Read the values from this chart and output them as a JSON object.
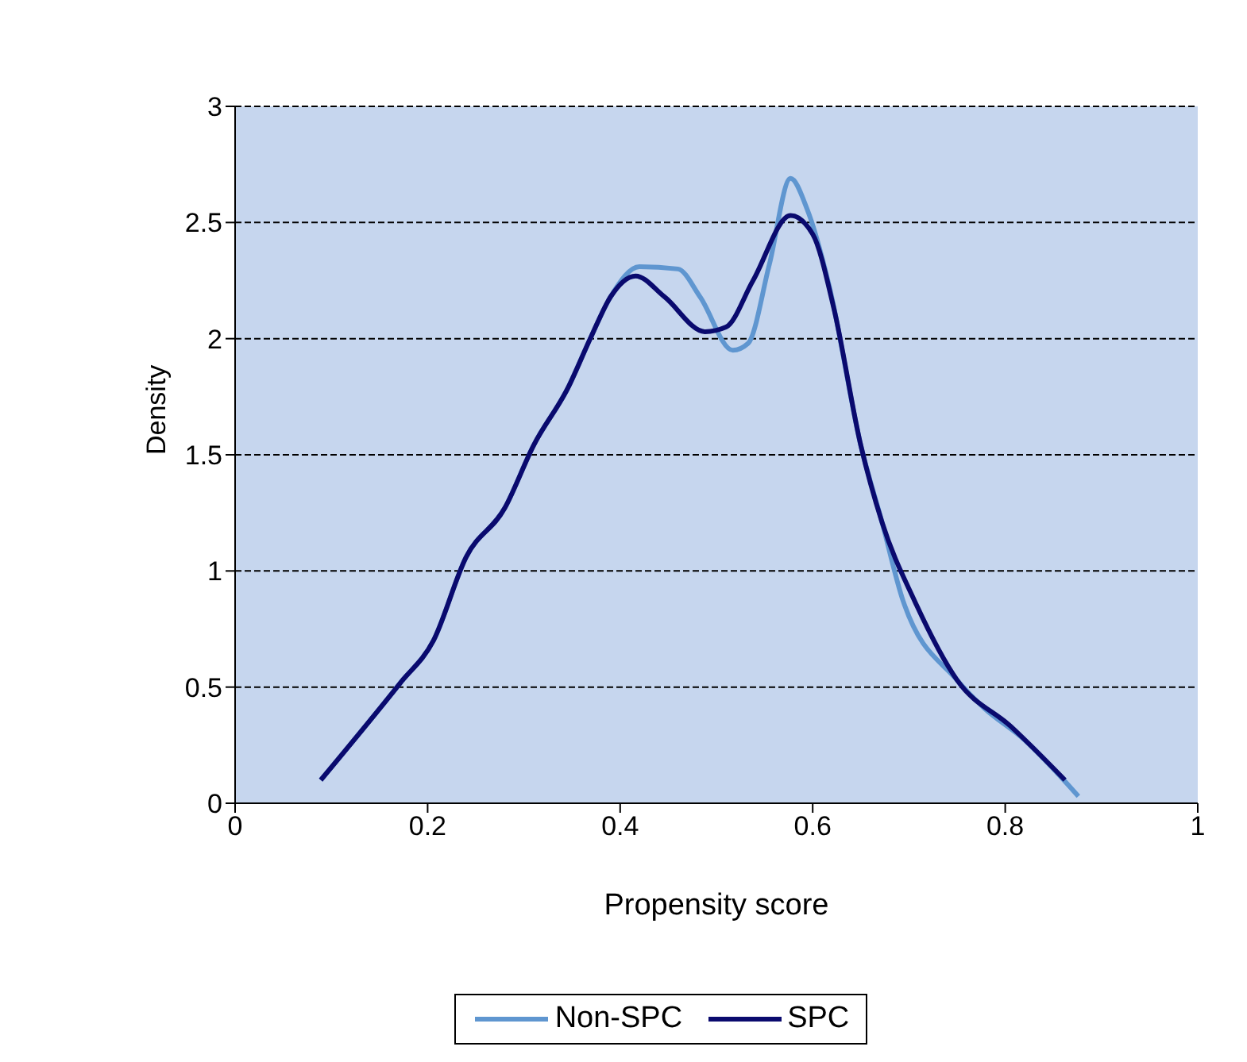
{
  "chart_data": {
    "type": "line",
    "xlabel": "Propensity score",
    "ylabel": "Density",
    "xlim": [
      0,
      1
    ],
    "xticks": [
      0,
      0.2,
      0.4,
      0.6,
      0.8,
      1
    ],
    "ylim": [
      0,
      3
    ],
    "yticks": [
      0,
      0.5,
      1,
      1.5,
      2,
      2.5,
      3
    ],
    "grid": "y",
    "legend": "bottom",
    "marker": "none",
    "line_style": "solid",
    "series": [
      {
        "name": "Non-SPC",
        "color": "#5f96d0",
        "x": [
          0.089,
          0.172,
          0.206,
          0.24,
          0.28,
          0.31,
          0.346,
          0.37,
          0.39,
          0.42,
          0.46,
          0.483,
          0.517,
          0.533,
          0.555,
          0.577,
          0.594,
          0.617,
          0.65,
          0.672,
          0.694,
          0.75,
          0.778,
          0.818,
          0.876
        ],
        "values": [
          0.1,
          0.52,
          0.7,
          1.06,
          1.27,
          1.54,
          1.79,
          2.01,
          2.18,
          2.31,
          2.3,
          2.18,
          1.95,
          1.98,
          2.32,
          2.69,
          2.56,
          2.23,
          1.54,
          1.21,
          0.87,
          0.53,
          0.41,
          0.28,
          0.03
        ]
      },
      {
        "name": "SPC",
        "color": "#0a0a6e",
        "x": [
          0.089,
          0.172,
          0.206,
          0.24,
          0.28,
          0.31,
          0.346,
          0.37,
          0.39,
          0.416,
          0.446,
          0.488,
          0.51,
          0.538,
          0.577,
          0.6,
          0.622,
          0.65,
          0.672,
          0.706,
          0.75,
          0.806,
          0.862
        ],
        "values": [
          0.1,
          0.52,
          0.7,
          1.06,
          1.27,
          1.54,
          1.79,
          2.01,
          2.18,
          2.27,
          2.18,
          2.03,
          2.05,
          2.25,
          2.53,
          2.45,
          2.13,
          1.54,
          1.21,
          0.87,
          0.53,
          0.33,
          0.1
        ]
      }
    ]
  }
}
